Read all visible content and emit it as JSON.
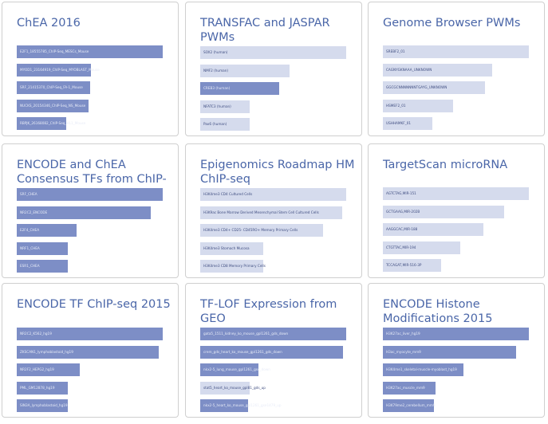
{
  "colors": {
    "highlight": "#7d8ec6",
    "faded": "#d5dbed",
    "title": "#4a66a8",
    "border": "#cfcfcf"
  },
  "cards": [
    {
      "title": "ChEA 2016",
      "bars": [
        {
          "label": "E2F1_18555785_ChIP-Seq_MESCs_Mouse",
          "value": 1.0,
          "highlight": true
        },
        {
          "label": "MYOD1_23164919_ChIP-Seq_MYOBLAST_Mouse",
          "value": 0.51,
          "highlight": true
        },
        {
          "label": "SRF_21415370_ChIP-Seq_FA-1_Mouse",
          "value": 0.5,
          "highlight": true
        },
        {
          "label": "NUCKS_20154346_ChIP-Seq_NS_Mouse",
          "value": 0.49,
          "highlight": true
        },
        {
          "label": "RBPJK_26168082_ChIP-Seq_HL1_Mouse",
          "value": 0.34,
          "highlight": true
        }
      ]
    },
    {
      "title": "TRANSFAC and JASPAR PWMs",
      "bars": [
        {
          "label": "SOX2 (human)",
          "value": 1.0,
          "highlight": false
        },
        {
          "label": "NMF2 (human)",
          "value": 0.61,
          "highlight": false
        },
        {
          "label": "CREB3 (human)",
          "value": 0.54,
          "highlight": true
        },
        {
          "label": "NFATC3 (human)",
          "value": 0.34,
          "highlight": false
        },
        {
          "label": "Pax6 (human)",
          "value": 0.34,
          "highlight": false
        }
      ]
    },
    {
      "title": "Genome Browser PWMs",
      "bars": [
        {
          "label": "SREBF2_01",
          "value": 1.0,
          "highlight": false
        },
        {
          "label": "CAGNYGKNAAA_UNKNOWN",
          "value": 0.75,
          "highlight": false
        },
        {
          "label": "GGCGCNNNNNNNTGAYG_UNKNOWN",
          "value": 0.7,
          "highlight": false
        },
        {
          "label": "HSMEF2_01",
          "value": 0.48,
          "highlight": false
        },
        {
          "label": "USHHAMKF_01",
          "value": 0.34,
          "highlight": false
        }
      ]
    },
    {
      "title": "ENCODE and ChEA Consensus TFs from ChIP-X",
      "bars": [
        {
          "label": "SRF_CHEA",
          "value": 1.0,
          "highlight": true
        },
        {
          "label": "NR2C2_ENCODE",
          "value": 0.92,
          "highlight": true
        },
        {
          "label": "E2F4_CHEA",
          "value": 0.41,
          "highlight": true
        },
        {
          "label": "NRF1_CHEA",
          "value": 0.35,
          "highlight": true
        },
        {
          "label": "ESR1_CHEA",
          "value": 0.35,
          "highlight": true
        }
      ]
    },
    {
      "title": "Epigenomics Roadmap HM ChIP-seq",
      "bars": [
        {
          "label": "H3K4me3 CD4 Cultured Cells",
          "value": 1.0,
          "highlight": false
        },
        {
          "label": "H3K9ac Bone Marrow Derived Mesenchymal Stem Cell Cultured Cells",
          "value": 0.97,
          "highlight": false
        },
        {
          "label": "H3K4me3 CD4+ CD25- CD45RO+ Memory Primary Cells",
          "value": 0.84,
          "highlight": false
        },
        {
          "label": "H3K4me3 Stomach Mucosa",
          "value": 0.43,
          "highlight": false
        },
        {
          "label": "H3K4me3 CD8 Memory Primary Cells",
          "value": 0.43,
          "highlight": false
        }
      ]
    },
    {
      "title": "TargetScan microRNA",
      "bars": [
        {
          "label": "AGTCTAG,MIR-151",
          "value": 1.0,
          "highlight": false
        },
        {
          "label": "GCTGAAG,MIR-202B",
          "value": 0.83,
          "highlight": false
        },
        {
          "label": "AAGGCAC,MIR-188",
          "value": 0.69,
          "highlight": false
        },
        {
          "label": "CTGTTAC,MIR-194",
          "value": 0.53,
          "highlight": false
        },
        {
          "label": "TCCAGAT,MIR-516-3P",
          "value": 0.4,
          "highlight": false
        }
      ]
    },
    {
      "title": "ENCODE TF ChIP-seq 2015",
      "bars": [
        {
          "label": "NR2C2_K562_hg19",
          "value": 1.0,
          "highlight": true
        },
        {
          "label": "ZKSCAN1_lymphoblastoid_hg19",
          "value": 0.97,
          "highlight": true
        },
        {
          "label": "NR2F2_HEPG2_hg19",
          "value": 0.43,
          "highlight": true
        },
        {
          "label": "PML_GM12878_hg19",
          "value": 0.35,
          "highlight": true
        },
        {
          "label": "SIN3A_lymphoblastoid_hg19",
          "value": 0.35,
          "highlight": true
        }
      ]
    },
    {
      "title": "TF-LOF Expression from GEO",
      "bars": [
        {
          "label": "gata5_1511_kidney_ko_mouse_gpl1261_gds_down",
          "value": 1.0,
          "highlight": true
        },
        {
          "label": "crem_gds_heart_ko_mouse_gpl1261_gds_down",
          "value": 0.98,
          "highlight": true
        },
        {
          "label": "nkx2-5_lung_mouse_gpl1261_gse_down",
          "value": 0.4,
          "highlight": true
        },
        {
          "label": "stat5_heart_ko_mouse_gpl81_gds_up",
          "value": 0.34,
          "highlight": false
        },
        {
          "label": "nkx2-5_heart_ko_mouse_gpl1261_gse1479_up",
          "value": 0.33,
          "highlight": true
        }
      ]
    },
    {
      "title": "ENCODE Histone Modifications 2015",
      "bars": [
        {
          "label": "H3K27ac_liver_hg19",
          "value": 1.0,
          "highlight": true
        },
        {
          "label": "H3ac_myocyte_mm9",
          "value": 0.91,
          "highlight": true
        },
        {
          "label": "H3K4me1_skeletal-muscle-myoblast_hg19",
          "value": 0.55,
          "highlight": true
        },
        {
          "label": "H3K27ac_muscle_mm9",
          "value": 0.36,
          "highlight": true
        },
        {
          "label": "H3K79me2_cerebellum_mm9",
          "value": 0.35,
          "highlight": true
        }
      ]
    }
  ]
}
